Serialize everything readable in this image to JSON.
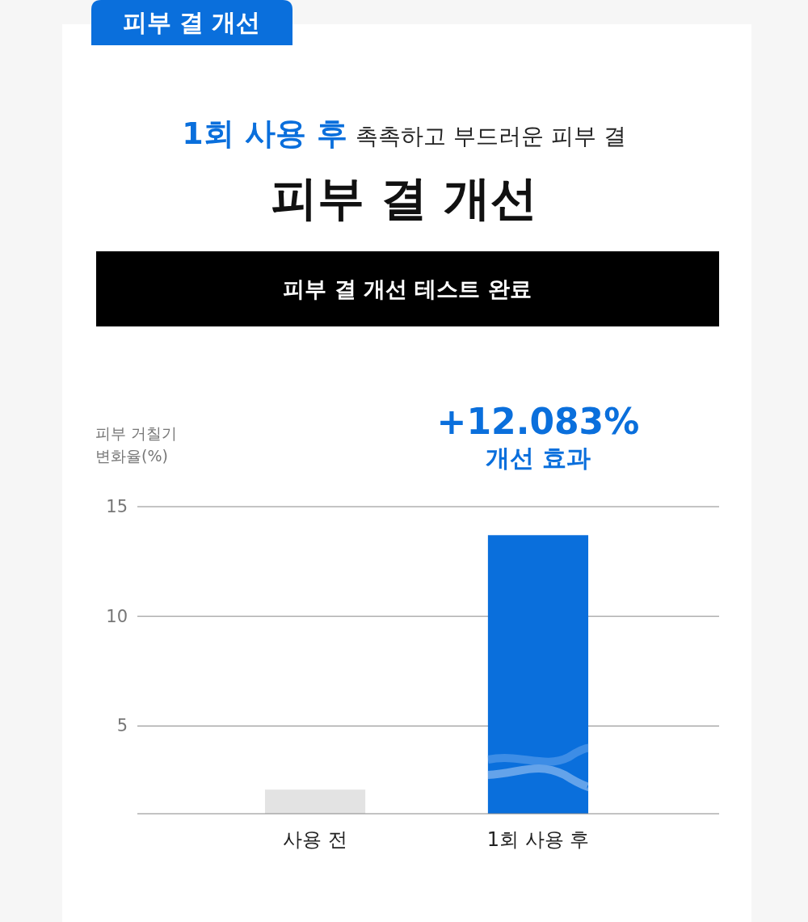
{
  "chart_data": {
    "type": "bar",
    "title": "피부 결 개선",
    "subtitle": "촉촉하고 부드러운 피부 결",
    "ylabel": "피부 거칠기\n변화율(%)",
    "categories": [
      "사용 전",
      "1회 사용 후"
    ],
    "values": [
      2.1,
      13.7
    ],
    "colors": [
      "#e3e3e3",
      "#0a6fdc"
    ],
    "ylim": [
      1,
      15
    ],
    "yticks": [
      5,
      10,
      15
    ],
    "grid": "y",
    "annotations": [
      "피부 결 개선",
      "1회 사용 후",
      "피부 결 개선 테스트 완료",
      {
        "text": "+12.083%",
        "x": "1회 사용 후",
        "y": 13.7
      },
      "개선 효과"
    ]
  }
}
